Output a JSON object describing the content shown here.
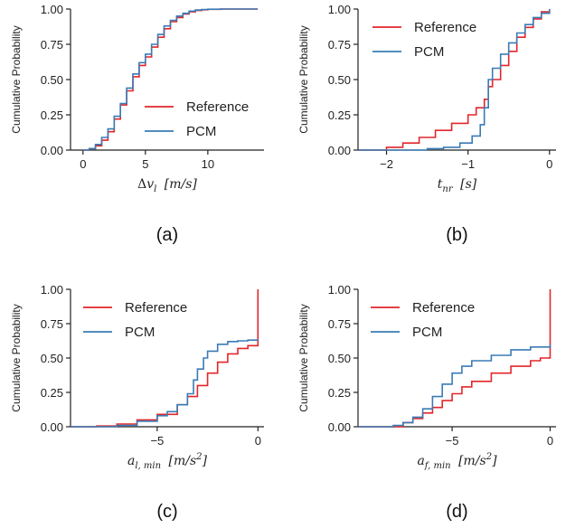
{
  "colors": {
    "reference": "#e3262b",
    "pcm": "#3a7bb5",
    "axis": "#222222"
  },
  "chart_data": [
    {
      "type": "line",
      "caption": "(a)",
      "ylabel": "Cumulative Probability",
      "xlabel": "Δv_l [m/s]",
      "xlabel_parts": {
        "main": "Δ",
        "var": "v",
        "sub": "l",
        "unit": "[m/s]"
      },
      "xlim": [
        -1,
        14.5
      ],
      "ylim": [
        0,
        1
      ],
      "xticks": [
        0,
        5,
        10
      ],
      "xtick_labels": [
        "0",
        "5",
        "10"
      ],
      "yticks": [
        0,
        0.25,
        0.5,
        0.75,
        1.0
      ],
      "ytick_labels": [
        "0.00",
        "0.25",
        "0.50",
        "0.75",
        "1.00"
      ],
      "legend": {
        "position": "lower-right",
        "entries": [
          "Reference",
          "PCM"
        ]
      },
      "series": [
        {
          "name": "Reference",
          "color_key": "reference",
          "x": [
            0,
            0.5,
            1,
            1.5,
            2,
            2.5,
            3,
            3.5,
            4,
            4.5,
            5,
            5.5,
            6,
            6.5,
            7,
            7.5,
            8,
            8.5,
            9,
            9.5,
            10,
            11,
            12,
            14
          ],
          "y": [
            0,
            0.01,
            0.03,
            0.07,
            0.13,
            0.22,
            0.32,
            0.42,
            0.52,
            0.6,
            0.66,
            0.73,
            0.8,
            0.86,
            0.91,
            0.94,
            0.965,
            0.98,
            0.99,
            0.995,
            0.998,
            1.0,
            1.0,
            1.0
          ]
        },
        {
          "name": "PCM",
          "color_key": "pcm",
          "x": [
            0,
            0.5,
            1,
            1.5,
            2,
            2.5,
            3,
            3.5,
            4,
            4.5,
            5,
            5.5,
            6,
            6.5,
            7,
            7.5,
            8,
            8.5,
            9,
            9.5,
            10,
            11,
            12,
            14
          ],
          "y": [
            0,
            0.01,
            0.04,
            0.09,
            0.15,
            0.24,
            0.33,
            0.44,
            0.54,
            0.62,
            0.68,
            0.75,
            0.82,
            0.88,
            0.92,
            0.95,
            0.97,
            0.985,
            0.993,
            0.997,
            0.999,
            1.0,
            1.0,
            1.0
          ]
        }
      ]
    },
    {
      "type": "line",
      "caption": "(b)",
      "ylabel": "Cumulative Probability",
      "xlabel": "t_nr [s]",
      "xlabel_parts": {
        "main": "",
        "var": "t",
        "sub": "nr",
        "unit": "[s]"
      },
      "xlim": [
        -2.35,
        0.08
      ],
      "ylim": [
        0,
        1
      ],
      "xticks": [
        -2,
        -1,
        0
      ],
      "xtick_labels": [
        "−2",
        "−1",
        "0"
      ],
      "yticks": [
        0,
        0.25,
        0.5,
        0.75,
        1.0
      ],
      "ytick_labels": [
        "0.00",
        "0.25",
        "0.50",
        "0.75",
        "1.00"
      ],
      "legend": {
        "position": "top-left",
        "entries": [
          "Reference",
          "PCM"
        ]
      },
      "series": [
        {
          "name": "Reference",
          "color_key": "reference",
          "x": [
            -2.35,
            -2.0,
            -1.8,
            -1.6,
            -1.4,
            -1.2,
            -1.0,
            -0.9,
            -0.8,
            -0.75,
            -0.7,
            -0.6,
            -0.5,
            -0.4,
            -0.3,
            -0.2,
            -0.1,
            0
          ],
          "y": [
            0,
            0.02,
            0.05,
            0.09,
            0.14,
            0.19,
            0.25,
            0.3,
            0.36,
            0.45,
            0.5,
            0.6,
            0.7,
            0.8,
            0.87,
            0.93,
            0.98,
            1.0
          ]
        },
        {
          "name": "PCM",
          "color_key": "pcm",
          "x": [
            -2.35,
            -1.8,
            -1.5,
            -1.3,
            -1.1,
            -0.95,
            -0.85,
            -0.8,
            -0.75,
            -0.7,
            -0.6,
            -0.5,
            -0.4,
            -0.3,
            -0.2,
            -0.1,
            0
          ],
          "y": [
            0,
            0.0,
            0.01,
            0.02,
            0.05,
            0.1,
            0.18,
            0.3,
            0.5,
            0.58,
            0.68,
            0.76,
            0.83,
            0.89,
            0.94,
            0.97,
            1.0
          ]
        }
      ]
    },
    {
      "type": "line",
      "caption": "(c)",
      "ylabel": "Cumulative Probability",
      "xlabel": "a_l,min [m/s^2]",
      "xlabel_parts": {
        "main": "",
        "var": "a",
        "sub": "l, min",
        "unit": "[m/s"
      },
      "xlim": [
        -9.3,
        0.3
      ],
      "ylim": [
        0,
        1
      ],
      "xticks": [
        -5,
        0
      ],
      "xtick_labels": [
        "−5",
        "0"
      ],
      "yticks": [
        0,
        0.25,
        0.5,
        0.75,
        1.0
      ],
      "ytick_labels": [
        "0.00",
        "0.25",
        "0.50",
        "0.75",
        "1.00"
      ],
      "legend": {
        "position": "top-left",
        "entries": [
          "Reference",
          "PCM"
        ]
      },
      "series": [
        {
          "name": "Reference",
          "color_key": "reference",
          "x": [
            -9.3,
            -8,
            -7,
            -6,
            -5,
            -4,
            -3.5,
            -3,
            -2.5,
            -2,
            -1.5,
            -1,
            -0.5,
            0,
            0,
            0
          ],
          "y": [
            0,
            0.005,
            0.02,
            0.05,
            0.09,
            0.16,
            0.22,
            0.3,
            0.39,
            0.47,
            0.53,
            0.57,
            0.59,
            0.61,
            0.61,
            1.0
          ]
        },
        {
          "name": "PCM",
          "color_key": "pcm",
          "x": [
            -9.3,
            -8,
            -7,
            -6,
            -5,
            -4.5,
            -4,
            -3.5,
            -3.2,
            -3,
            -2.7,
            -2.5,
            -2,
            -1.5,
            -1,
            -0.5,
            0,
            0
          ],
          "y": [
            0,
            0.0,
            0.01,
            0.04,
            0.08,
            0.11,
            0.16,
            0.24,
            0.34,
            0.42,
            0.5,
            0.55,
            0.6,
            0.62,
            0.625,
            0.63,
            0.635,
            0.635
          ]
        }
      ]
    },
    {
      "type": "line",
      "caption": "(d)",
      "ylabel": "Cumulative Probability",
      "xlabel": "a_f,min [m/s^2]",
      "xlabel_parts": {
        "main": "",
        "var": "a",
        "sub": "f, min",
        "unit": "[m/s"
      },
      "xlim": [
        -9.8,
        0.3
      ],
      "ylim": [
        0,
        1
      ],
      "xticks": [
        -5,
        0
      ],
      "xtick_labels": [
        "−5",
        "0"
      ],
      "yticks": [
        0,
        0.25,
        0.5,
        0.75,
        1.0
      ],
      "ytick_labels": [
        "0.00",
        "0.25",
        "0.50",
        "0.75",
        "1.00"
      ],
      "legend": {
        "position": "top-left",
        "entries": [
          "Reference",
          "PCM"
        ]
      },
      "series": [
        {
          "name": "Reference",
          "color_key": "reference",
          "x": [
            -9.8,
            -8.5,
            -7.5,
            -7,
            -6.5,
            -6,
            -5.5,
            -5,
            -4.5,
            -4,
            -3,
            -2,
            -1,
            -0.5,
            0,
            0
          ],
          "y": [
            0,
            0.0,
            0.03,
            0.06,
            0.1,
            0.14,
            0.19,
            0.24,
            0.29,
            0.33,
            0.39,
            0.44,
            0.48,
            0.5,
            0.52,
            1.0
          ]
        },
        {
          "name": "PCM",
          "color_key": "pcm",
          "x": [
            -9.8,
            -8.5,
            -8,
            -7.5,
            -7,
            -6.5,
            -6,
            -5.5,
            -5,
            -4.5,
            -4,
            -3,
            -2,
            -1,
            0
          ],
          "y": [
            0,
            0.0,
            0.01,
            0.03,
            0.07,
            0.13,
            0.22,
            0.31,
            0.39,
            0.44,
            0.48,
            0.52,
            0.56,
            0.58,
            0.6
          ]
        }
      ]
    }
  ]
}
